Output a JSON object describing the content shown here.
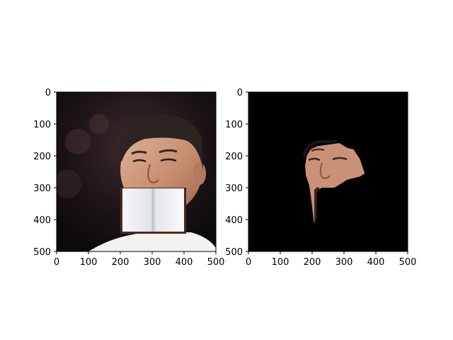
{
  "chart_data": [
    {
      "type": "image",
      "title": "",
      "xlabel": "",
      "ylabel": "",
      "xlim": [
        0,
        500
      ],
      "ylim": [
        500,
        0
      ],
      "xticks": [
        0,
        100,
        200,
        300,
        400,
        500
      ],
      "yticks": [
        0,
        100,
        200,
        300,
        400,
        500
      ],
      "image_content": "photo of a smiling man with dark hair; an open white book pasted over the lower face",
      "pasted_object_box": {
        "x": [
          200,
          400
        ],
        "y": [
          300,
          445
        ]
      }
    },
    {
      "type": "image",
      "title": "",
      "xlabel": "",
      "ylabel": "",
      "xlim": [
        0,
        500
      ],
      "ylim": [
        500,
        0
      ],
      "xticks": [
        0,
        100,
        200,
        300,
        400,
        500
      ],
      "yticks": [
        0,
        100,
        200,
        300,
        400,
        500
      ],
      "image_content": "segmentation mask: black background with only the face skin region visible",
      "mask_outline": [
        [
          195,
          180
        ],
        [
          215,
          170
        ],
        [
          250,
          165
        ],
        [
          285,
          160
        ],
        [
          310,
          175
        ],
        [
          330,
          180
        ],
        [
          350,
          210
        ],
        [
          365,
          255
        ],
        [
          350,
          265
        ],
        [
          310,
          275
        ],
        [
          270,
          300
        ],
        [
          230,
          300
        ],
        [
          215,
          310
        ],
        [
          210,
          330
        ],
        [
          212,
          360
        ],
        [
          210,
          395
        ],
        [
          207,
          410
        ],
        [
          205,
          405
        ],
        [
          200,
          360
        ],
        [
          195,
          320
        ],
        [
          190,
          290
        ],
        [
          180,
          260
        ],
        [
          178,
          230
        ],
        [
          183,
          200
        ]
      ]
    }
  ],
  "colors": {
    "mask_background": "#000000",
    "book_page": "#eceff2",
    "book_border": "#4a2a1e",
    "skin": "#c99277",
    "hair": "#2b2420"
  }
}
